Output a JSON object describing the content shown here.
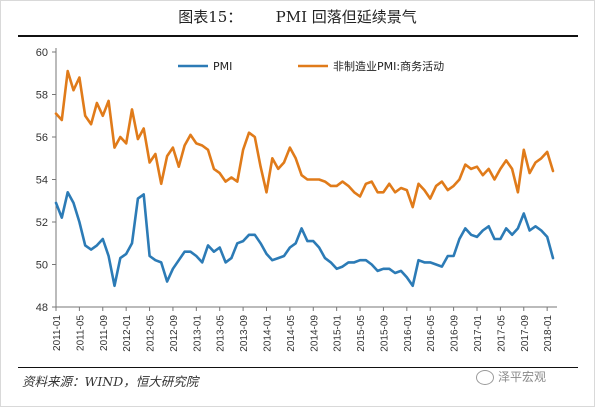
{
  "title": "图表15：       PMI 回落但延续景气",
  "source": "资料来源：WIND，恒大研究院",
  "watermark": "泽平宏观",
  "chart_data": {
    "type": "line",
    "ylim": [
      48,
      60
    ],
    "yticks": [
      48,
      50,
      52,
      54,
      56,
      58,
      60
    ],
    "x_tick_labels": [
      "2011-01",
      "2011-05",
      "2011-09",
      "2012-01",
      "2012-05",
      "2012-09",
      "2013-01",
      "2013-05",
      "2013-09",
      "2014-01",
      "2014-05",
      "2014-09",
      "2015-01",
      "2015-05",
      "2015-09",
      "2016-01",
      "2016-05",
      "2016-09",
      "2017-01",
      "2017-05",
      "2017-09",
      "2018-01"
    ],
    "x_start": "2011-01",
    "x_end": "2018-03",
    "legend_position": "top",
    "grid": false,
    "series": [
      {
        "name": "PMI",
        "color": "#2c7bb6",
        "values": [
          52.9,
          52.2,
          53.4,
          52.9,
          52.0,
          50.9,
          50.7,
          50.9,
          51.2,
          50.4,
          49.0,
          50.3,
          50.5,
          51.0,
          53.1,
          53.3,
          50.4,
          50.2,
          50.1,
          49.2,
          49.8,
          50.2,
          50.6,
          50.6,
          50.4,
          50.1,
          50.9,
          50.6,
          50.8,
          50.1,
          50.3,
          51.0,
          51.1,
          51.4,
          51.4,
          51.0,
          50.5,
          50.2,
          50.3,
          50.4,
          50.8,
          51.0,
          51.7,
          51.1,
          51.1,
          50.8,
          50.3,
          50.1,
          49.8,
          49.9,
          50.1,
          50.1,
          50.2,
          50.2,
          50.0,
          49.7,
          49.8,
          49.8,
          49.6,
          49.7,
          49.4,
          49.0,
          50.2,
          50.1,
          50.1,
          50.0,
          49.9,
          50.4,
          50.4,
          51.2,
          51.7,
          51.4,
          51.3,
          51.6,
          51.8,
          51.2,
          51.2,
          51.7,
          51.4,
          51.7,
          52.4,
          51.6,
          51.8,
          51.6,
          51.3,
          50.3
        ],
        "show_in_legend": true
      },
      {
        "name": "非制造业PMI:商务活动",
        "color": "#e07b1a",
        "values": [
          57.1,
          56.8,
          59.1,
          58.2,
          58.8,
          57.0,
          56.6,
          57.6,
          57.0,
          57.7,
          55.5,
          56.0,
          55.7,
          57.3,
          55.9,
          56.4,
          54.8,
          55.2,
          53.8,
          55.1,
          55.5,
          54.6,
          55.6,
          56.1,
          55.7,
          55.6,
          55.4,
          54.5,
          54.3,
          53.9,
          54.1,
          53.9,
          55.4,
          56.2,
          56.0,
          54.6,
          53.4,
          55.0,
          54.5,
          54.8,
          55.5,
          55.0,
          54.2,
          54.0,
          54.0,
          54.0,
          53.9,
          53.7,
          53.7,
          53.9,
          53.7,
          53.4,
          53.2,
          53.8,
          53.9,
          53.4,
          53.4,
          53.8,
          53.4,
          53.6,
          53.5,
          52.7,
          53.8,
          53.5,
          53.1,
          53.7,
          53.9,
          53.5,
          53.7,
          54.0,
          54.7,
          54.5,
          54.6,
          54.2,
          54.5,
          54.0,
          54.5,
          54.9,
          54.5,
          53.4,
          55.4,
          54.3,
          54.8,
          55.0,
          55.3,
          54.4
        ],
        "show_in_legend": true
      }
    ]
  }
}
